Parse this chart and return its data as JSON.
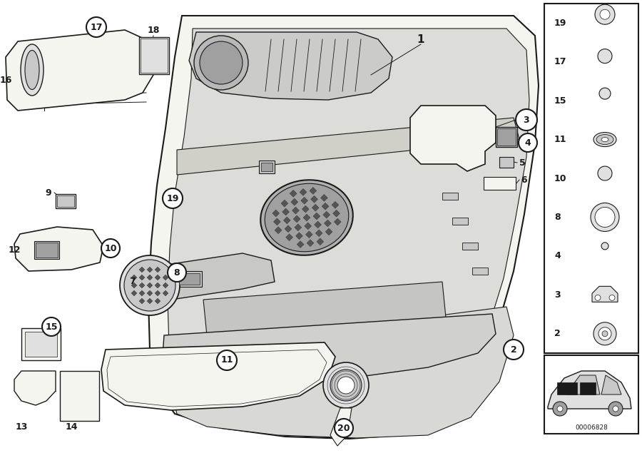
{
  "bg": "#f5f5f0",
  "white": "#ffffff",
  "dark": "#1a1a1a",
  "gray1": "#c8c8c8",
  "gray2": "#e0e0e0",
  "gray3": "#a0a0a0",
  "fig_w": 9.0,
  "fig_h": 6.35,
  "dpi": 100,
  "part_number": "00006828",
  "rp_items": [
    19,
    17,
    15,
    11,
    10,
    8,
    4,
    3,
    2
  ]
}
